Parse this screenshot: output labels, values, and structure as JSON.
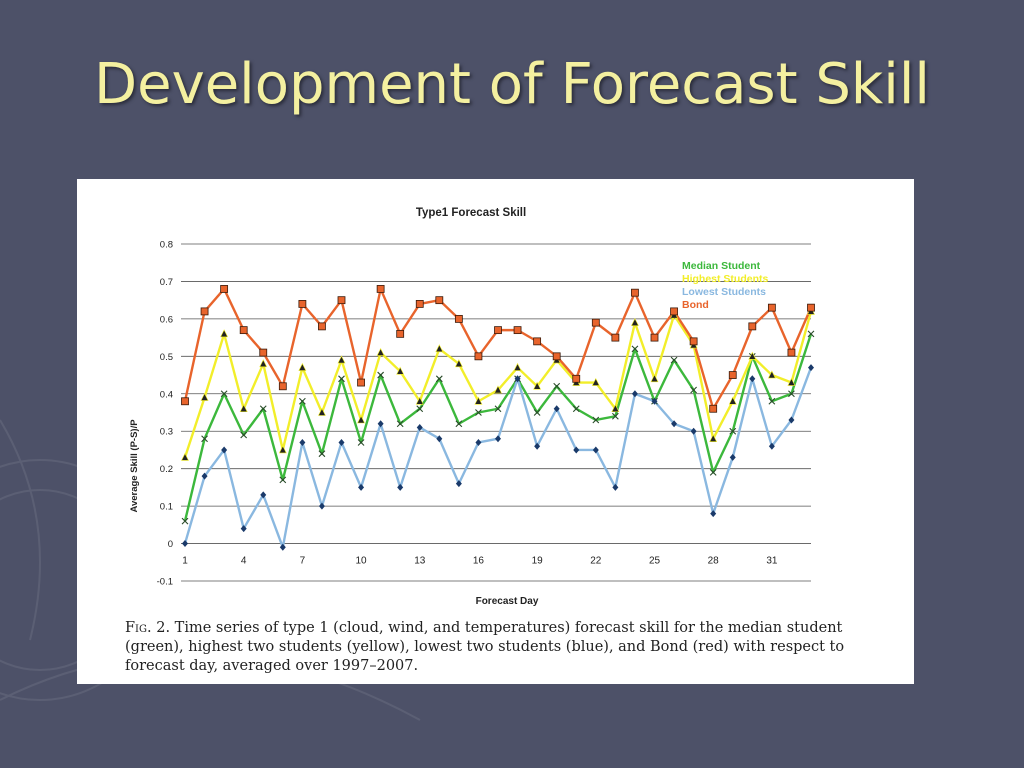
{
  "slide": {
    "title": "Development of Forecast Skill"
  },
  "figure": {
    "caption_label": "Fig. 2.",
    "caption_text": "Time series of type 1 (cloud, wind, and temperatures) forecast skill for the median student (green), highest two students (yellow), lowest two students (blue), and Bond (red) with respect to forecast day, averaged over 1997–2007."
  },
  "chart_data": {
    "type": "line",
    "title": "Type1 Forecast Skill",
    "xlabel": "Forecast Day",
    "ylabel": "Average Skill (P-S)/P",
    "ylim": [
      -0.1,
      0.8
    ],
    "yticks": [
      -0.1,
      0,
      0.1,
      0.2,
      0.3,
      0.4,
      0.5,
      0.6,
      0.7,
      0.8
    ],
    "ytick_labels": [
      "-0.1",
      "0",
      "0.1",
      "0.2",
      "0.3",
      "0.4",
      "0.5",
      "0.6",
      "0.7",
      "0.8"
    ],
    "xlim": [
      1,
      33
    ],
    "xticks": [
      1,
      4,
      7,
      10,
      13,
      16,
      19,
      22,
      25,
      28,
      31
    ],
    "xtick_labels": [
      "1",
      "4",
      "7",
      "10",
      "13",
      "16",
      "19",
      "22",
      "25",
      "28",
      "31"
    ],
    "x": [
      1,
      2,
      3,
      4,
      5,
      6,
      7,
      8,
      9,
      10,
      11,
      12,
      13,
      14,
      15,
      16,
      17,
      18,
      19,
      20,
      21,
      22,
      23,
      24,
      25,
      26,
      27,
      28,
      29,
      30,
      31,
      32,
      33
    ],
    "grid": "horizontal",
    "legend_position": "top-right",
    "series": [
      {
        "name": "Median Student",
        "color": "#3cb83c",
        "marker": "x",
        "values": [
          0.06,
          0.28,
          0.4,
          0.29,
          0.36,
          0.17,
          0.38,
          0.24,
          0.44,
          0.27,
          0.45,
          0.32,
          0.36,
          0.44,
          0.32,
          0.35,
          0.36,
          0.44,
          0.35,
          0.42,
          0.36,
          0.33,
          0.34,
          0.52,
          0.38,
          0.49,
          0.41,
          0.19,
          0.3,
          0.5,
          0.38,
          0.4,
          0.56
        ]
      },
      {
        "name": "Highest Students",
        "color": "#f2ee2a",
        "marker": "triangle",
        "values": [
          0.23,
          0.39,
          0.56,
          0.36,
          0.48,
          0.25,
          0.47,
          0.35,
          0.49,
          0.33,
          0.51,
          0.46,
          0.38,
          0.52,
          0.48,
          0.38,
          0.41,
          0.47,
          0.42,
          0.49,
          0.43,
          0.43,
          0.36,
          0.59,
          0.44,
          0.61,
          0.53,
          0.28,
          0.38,
          0.5,
          0.45,
          0.43,
          0.62
        ]
      },
      {
        "name": "Lowest Students",
        "color": "#8ab8e0",
        "marker": "diamond",
        "values": [
          0.0,
          0.18,
          0.25,
          0.04,
          0.13,
          -0.01,
          0.27,
          0.1,
          0.27,
          0.15,
          0.32,
          0.15,
          0.31,
          0.28,
          0.16,
          0.27,
          0.28,
          0.44,
          0.26,
          0.36,
          0.25,
          0.25,
          0.15,
          0.4,
          0.38,
          0.32,
          0.3,
          0.08,
          0.23,
          0.44,
          0.26,
          0.33,
          0.47
        ]
      },
      {
        "name": "Bond",
        "color": "#e8642c",
        "marker": "square",
        "values": [
          0.38,
          0.62,
          0.68,
          0.57,
          0.51,
          0.42,
          0.64,
          0.58,
          0.65,
          0.43,
          0.68,
          0.56,
          0.64,
          0.65,
          0.6,
          0.5,
          0.57,
          0.57,
          0.54,
          0.5,
          0.44,
          0.59,
          0.55,
          0.67,
          0.55,
          0.62,
          0.54,
          0.36,
          0.45,
          0.58,
          0.63,
          0.51,
          0.63
        ]
      }
    ]
  }
}
